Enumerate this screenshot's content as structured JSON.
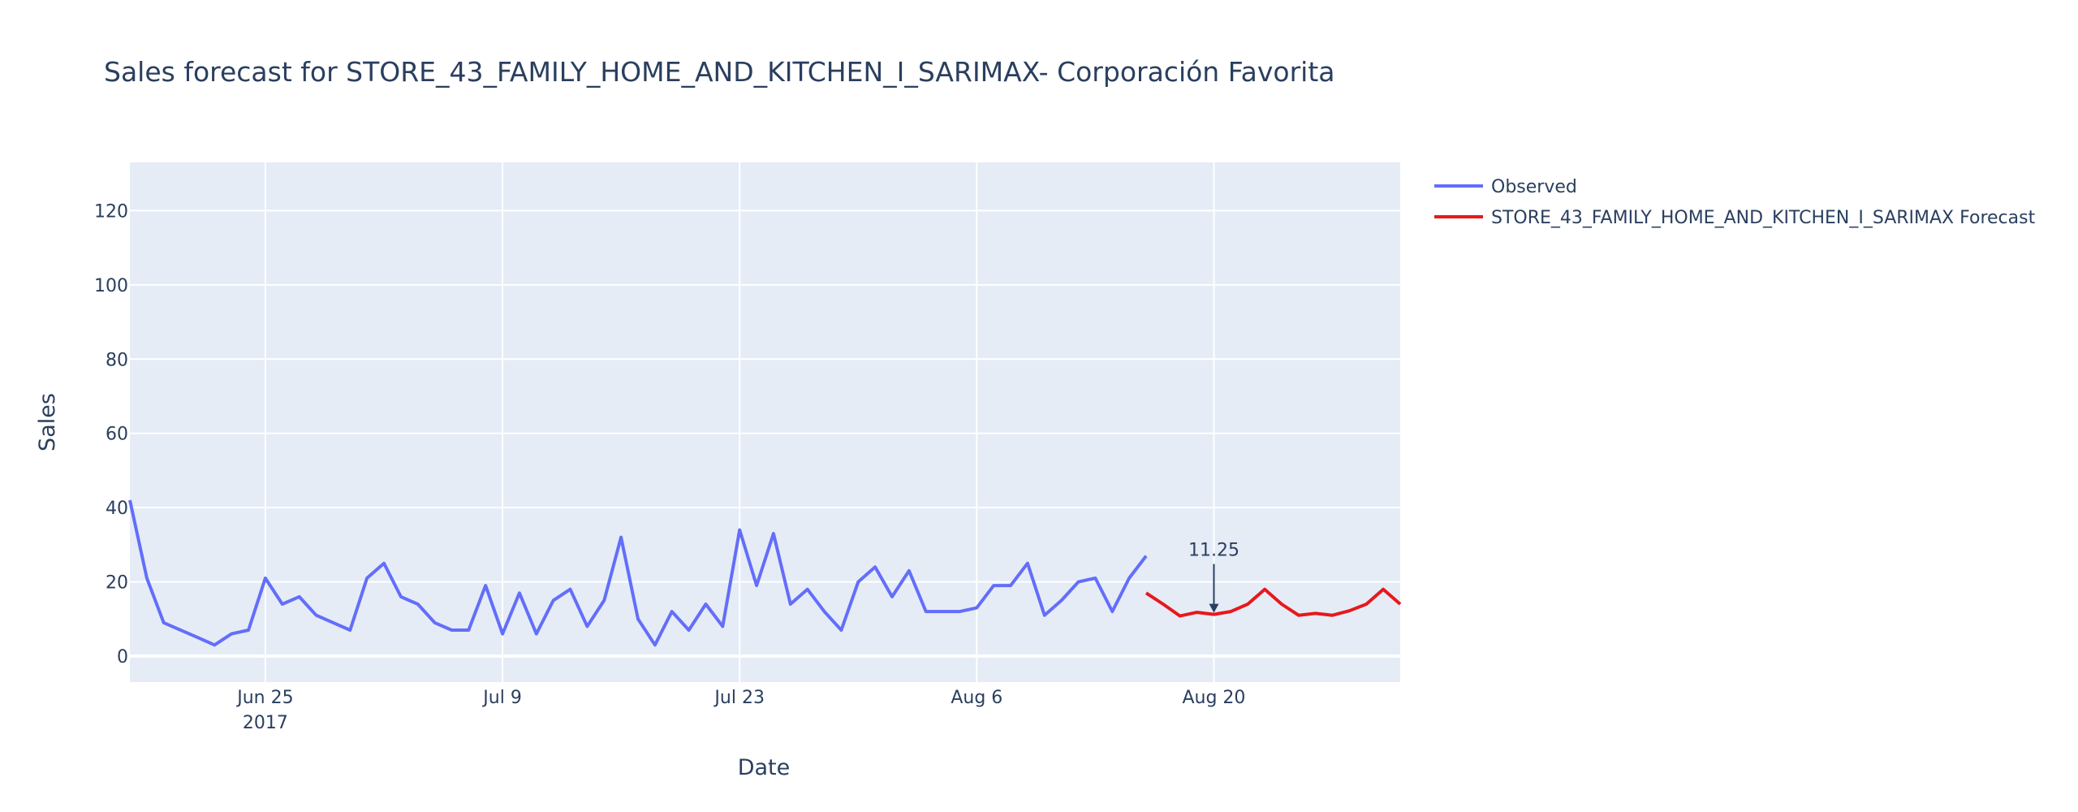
{
  "chart_data": {
    "type": "line",
    "title": "Sales forecast for STORE_43_FAMILY_HOME_AND_KITCHEN_I_SARIMAX- Corporación Favorita",
    "xlabel": "Date",
    "ylabel": "Sales",
    "x_range": [
      "2017-06-17",
      "2017-08-31"
    ],
    "ylim": [
      -7,
      133
    ],
    "x_ticks": [
      {
        "date": "2017-06-25",
        "label": "Jun 25",
        "sublabel": "2017"
      },
      {
        "date": "2017-07-09",
        "label": "Jul 9",
        "sublabel": ""
      },
      {
        "date": "2017-07-23",
        "label": "Jul 23",
        "sublabel": ""
      },
      {
        "date": "2017-08-06",
        "label": "Aug 6",
        "sublabel": ""
      },
      {
        "date": "2017-08-20",
        "label": "Aug 20",
        "sublabel": ""
      }
    ],
    "y_ticks": [
      0,
      20,
      40,
      60,
      80,
      100,
      120
    ],
    "grid": true,
    "legend_position": "right",
    "series": [
      {
        "name": "Observed",
        "color": "#636efa",
        "points": [
          [
            "2017-06-17",
            42
          ],
          [
            "2017-06-18",
            21
          ],
          [
            "2017-06-19",
            9
          ],
          [
            "2017-06-21",
            5
          ],
          [
            "2017-06-22",
            3
          ],
          [
            "2017-06-23",
            6
          ],
          [
            "2017-06-24",
            7
          ],
          [
            "2017-06-25",
            21
          ],
          [
            "2017-06-26",
            14
          ],
          [
            "2017-06-27",
            16
          ],
          [
            "2017-06-28",
            11
          ],
          [
            "2017-06-30",
            7
          ],
          [
            "2017-07-01",
            21
          ],
          [
            "2017-07-02",
            25
          ],
          [
            "2017-07-03",
            16
          ],
          [
            "2017-07-04",
            14
          ],
          [
            "2017-07-05",
            9
          ],
          [
            "2017-07-06",
            7
          ],
          [
            "2017-07-07",
            7
          ],
          [
            "2017-07-08",
            19
          ],
          [
            "2017-07-09",
            6
          ],
          [
            "2017-07-10",
            17
          ],
          [
            "2017-07-11",
            6
          ],
          [
            "2017-07-12",
            15
          ],
          [
            "2017-07-13",
            18
          ],
          [
            "2017-07-14",
            8
          ],
          [
            "2017-07-15",
            15
          ],
          [
            "2017-07-16",
            32
          ],
          [
            "2017-07-17",
            10
          ],
          [
            "2017-07-18",
            3
          ],
          [
            "2017-07-19",
            12
          ],
          [
            "2017-07-20",
            7
          ],
          [
            "2017-07-21",
            14
          ],
          [
            "2017-07-22",
            8
          ],
          [
            "2017-07-23",
            34
          ],
          [
            "2017-07-24",
            19
          ],
          [
            "2017-07-25",
            33
          ],
          [
            "2017-07-26",
            14
          ],
          [
            "2017-07-27",
            18
          ],
          [
            "2017-07-28",
            12
          ],
          [
            "2017-07-29",
            7
          ],
          [
            "2017-07-30",
            20
          ],
          [
            "2017-07-31",
            24
          ],
          [
            "2017-08-01",
            16
          ],
          [
            "2017-08-02",
            23
          ],
          [
            "2017-08-03",
            12
          ],
          [
            "2017-08-05",
            12
          ],
          [
            "2017-08-06",
            13
          ],
          [
            "2017-08-07",
            19
          ],
          [
            "2017-08-08",
            19
          ],
          [
            "2017-08-09",
            25
          ],
          [
            "2017-08-10",
            11
          ],
          [
            "2017-08-11",
            15
          ],
          [
            "2017-08-12",
            20
          ],
          [
            "2017-08-13",
            21
          ],
          [
            "2017-08-14",
            12
          ],
          [
            "2017-08-15",
            21
          ],
          [
            "2017-08-16",
            27
          ]
        ]
      },
      {
        "name": "STORE_43_FAMILY_HOME_AND_KITCHEN_I_SARIMAX Forecast",
        "color": "#e8181c",
        "points": [
          [
            "2017-08-16",
            17
          ],
          [
            "2017-08-17",
            14
          ],
          [
            "2017-08-18",
            10.8
          ],
          [
            "2017-08-19",
            11.8
          ],
          [
            "2017-08-20",
            11.25
          ],
          [
            "2017-08-21",
            12
          ],
          [
            "2017-08-22",
            14
          ],
          [
            "2017-08-23",
            18
          ],
          [
            "2017-08-24",
            14
          ],
          [
            "2017-08-25",
            11
          ],
          [
            "2017-08-26",
            11.5
          ],
          [
            "2017-08-27",
            11
          ],
          [
            "2017-08-28",
            12.2
          ],
          [
            "2017-08-29",
            14
          ],
          [
            "2017-08-30",
            18
          ],
          [
            "2017-08-31",
            14
          ]
        ]
      }
    ],
    "annotations": [
      {
        "date": "2017-08-20",
        "y": 11.25,
        "text": "11.25"
      }
    ]
  }
}
